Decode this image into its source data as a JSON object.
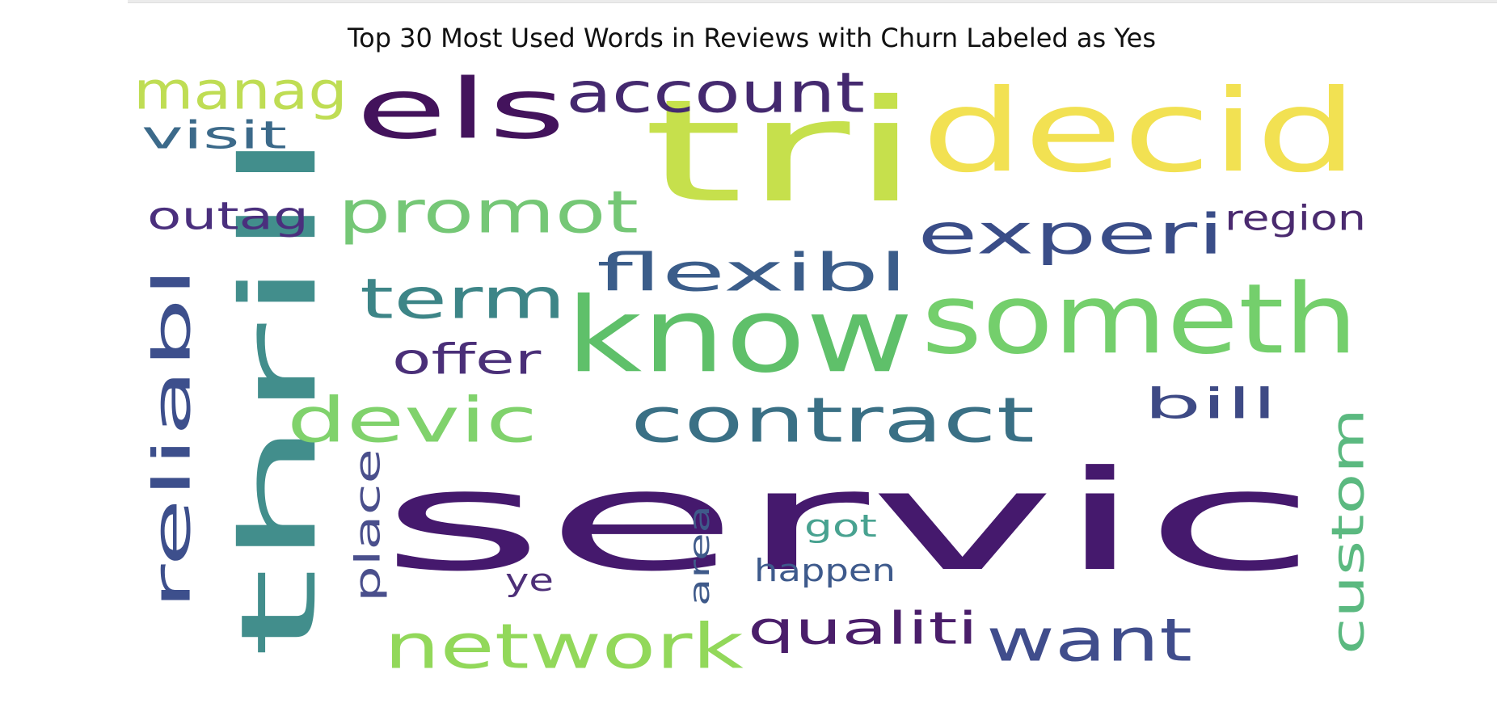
{
  "chart_data": {
    "type": "wordcloud",
    "title": "Top 30 Most Used Words in Reviews with Churn Labeled as Yes",
    "words": [
      {
        "text": "servic",
        "rank": 1,
        "color": "#45196d"
      },
      {
        "text": "tri",
        "rank": 2,
        "color": "#c6e04c"
      },
      {
        "text": "know",
        "rank": 3,
        "color": "#5fc06a"
      },
      {
        "text": "thrill",
        "rank": 4,
        "color": "#428e8c"
      },
      {
        "text": "decid",
        "rank": 5,
        "color": "#f2e152"
      },
      {
        "text": "someth",
        "rank": 6,
        "color": "#74cf6c"
      },
      {
        "text": "els",
        "rank": 7,
        "color": "#43135c"
      },
      {
        "text": "contract",
        "rank": 8,
        "color": "#3a7085"
      },
      {
        "text": "experi",
        "rank": 9,
        "color": "#3a4d88"
      },
      {
        "text": "promot",
        "rank": 10,
        "color": "#75c776"
      },
      {
        "text": "network",
        "rank": 11,
        "color": "#92d85a"
      },
      {
        "text": "want",
        "rank": 12,
        "color": "#404d8c"
      },
      {
        "text": "reliabl",
        "rank": 13,
        "color": "#3d4f8c"
      },
      {
        "text": "devic",
        "rank": 14,
        "color": "#80d26c"
      },
      {
        "text": "account",
        "rank": 15,
        "color": "#44296f"
      },
      {
        "text": "flexibl",
        "rank": 16,
        "color": "#3b5d8a"
      },
      {
        "text": "term",
        "rank": 17,
        "color": "#3d8587"
      },
      {
        "text": "custom",
        "rank": 18,
        "color": "#5bb980"
      },
      {
        "text": "manag",
        "rank": 19,
        "color": "#bfdd54"
      },
      {
        "text": "qualiti",
        "rank": 20,
        "color": "#4a1e6a"
      },
      {
        "text": "outag",
        "rank": 21,
        "color": "#4a2f7d"
      },
      {
        "text": "offer",
        "rank": 22,
        "color": "#4a2f78"
      },
      {
        "text": "bill",
        "rank": 23,
        "color": "#3e4a85"
      },
      {
        "text": "visit",
        "rank": 24,
        "color": "#3c6a8a"
      },
      {
        "text": "region",
        "rank": 25,
        "color": "#4a2a6f"
      },
      {
        "text": "happen",
        "rank": 26,
        "color": "#3e5a8c"
      },
      {
        "text": "place",
        "rank": 27,
        "color": "#4a4f8c"
      },
      {
        "text": "got",
        "rank": 28,
        "color": "#48a290"
      },
      {
        "text": "area",
        "rank": 29,
        "color": "#3f5a8a"
      },
      {
        "text": "ye",
        "rank": 30,
        "color": "#4d2f78"
      }
    ]
  }
}
